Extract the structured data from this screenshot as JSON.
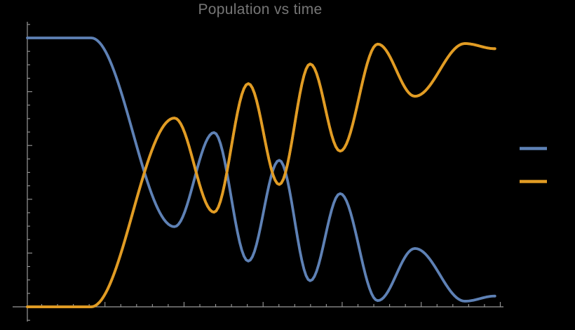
{
  "colors": {
    "background": "#000000",
    "axis": "#9a9a9a",
    "title": "#767676",
    "series_blue": "#5e81b5",
    "series_orange": "#e19c24"
  },
  "legend": {
    "position": "right-center",
    "items": [
      {
        "name": "series-1-blue-swatch",
        "label_visible": false,
        "color": "#5e81b5"
      },
      {
        "name": "series-2-orange-swatch",
        "label_visible": false,
        "color": "#e19c24"
      }
    ]
  },
  "chart_data": {
    "type": "line",
    "title": "Population vs time",
    "xlabel": "",
    "ylabel": "",
    "x_axis": {
      "tick_labels_visible": false,
      "minor_tick_count": 30,
      "major_tick_every": 5
    },
    "y_axis": {
      "range": [
        0,
        1
      ],
      "tick_labels_visible": false,
      "minor_step": 0.05,
      "major_step": 0.2,
      "pad": 0.05
    },
    "interpolation": "half-cosine between listed extrema (zero slope at each point); x given as fraction of axis span (no numeric tick labels are visible in the chart)",
    "series": [
      {
        "name": "population-1 (blue)",
        "color": "#5e81b5",
        "points": [
          [
            0.0,
            1.0
          ],
          [
            0.134,
            1.0
          ],
          [
            0.309,
            0.298
          ],
          [
            0.392,
            0.648
          ],
          [
            0.464,
            0.17
          ],
          [
            0.529,
            0.545
          ],
          [
            0.594,
            0.097
          ],
          [
            0.657,
            0.421
          ],
          [
            0.736,
            0.023
          ],
          [
            0.814,
            0.217
          ],
          [
            0.919,
            0.021
          ],
          [
            0.982,
            0.04
          ]
        ]
      },
      {
        "name": "population-2 (orange)",
        "color": "#e19c24",
        "points": [
          [
            0.0,
            0.0
          ],
          [
            0.134,
            0.0
          ],
          [
            0.309,
            0.702
          ],
          [
            0.392,
            0.352
          ],
          [
            0.464,
            0.83
          ],
          [
            0.529,
            0.455
          ],
          [
            0.594,
            0.903
          ],
          [
            0.657,
            0.579
          ],
          [
            0.736,
            0.977
          ],
          [
            0.814,
            0.783
          ],
          [
            0.919,
            0.979
          ],
          [
            0.982,
            0.96
          ]
        ]
      }
    ]
  }
}
